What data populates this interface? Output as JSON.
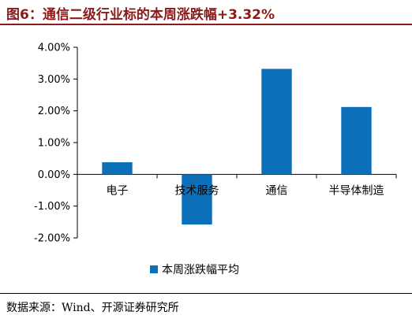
{
  "title": "图6：通信二级行业标的本周涨跌幅+3.32%",
  "source": "数据来源：Wind、开源证券研究所",
  "chart_data": {
    "type": "bar",
    "categories": [
      "电子",
      "技术服务",
      "通信",
      "半导体制造"
    ],
    "series": [
      {
        "name": "本周涨跌幅平均",
        "values": [
          0.38,
          -1.58,
          3.32,
          2.12
        ],
        "color": "#0b6fba"
      }
    ],
    "ylim": [
      -2.0,
      4.0
    ],
    "yticks": [
      -2.0,
      -1.0,
      0.0,
      1.0,
      2.0,
      3.0,
      4.0
    ],
    "ytick_labels": [
      "-2.00%",
      "-1.00%",
      "0.00%",
      "1.00%",
      "2.00%",
      "3.00%",
      "4.00%"
    ],
    "legend_position": "bottom",
    "grid": false
  }
}
